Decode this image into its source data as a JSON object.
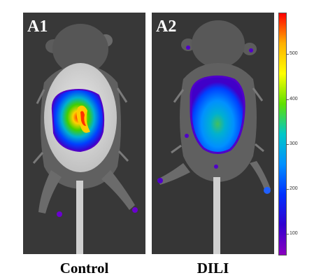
{
  "panels": [
    {
      "label": "A1",
      "caption": "Control"
    },
    {
      "label": "A2",
      "caption": "DILI"
    }
  ],
  "colorbar": {
    "ticks": [
      "500",
      "400",
      "300",
      "200",
      "100"
    ],
    "colors": [
      "#ff0000",
      "#ffb000",
      "#ffff00",
      "#5fe000",
      "#00c8c8",
      "#0090ff",
      "#0030ff",
      "#3000d0",
      "#8a00c0"
    ]
  }
}
